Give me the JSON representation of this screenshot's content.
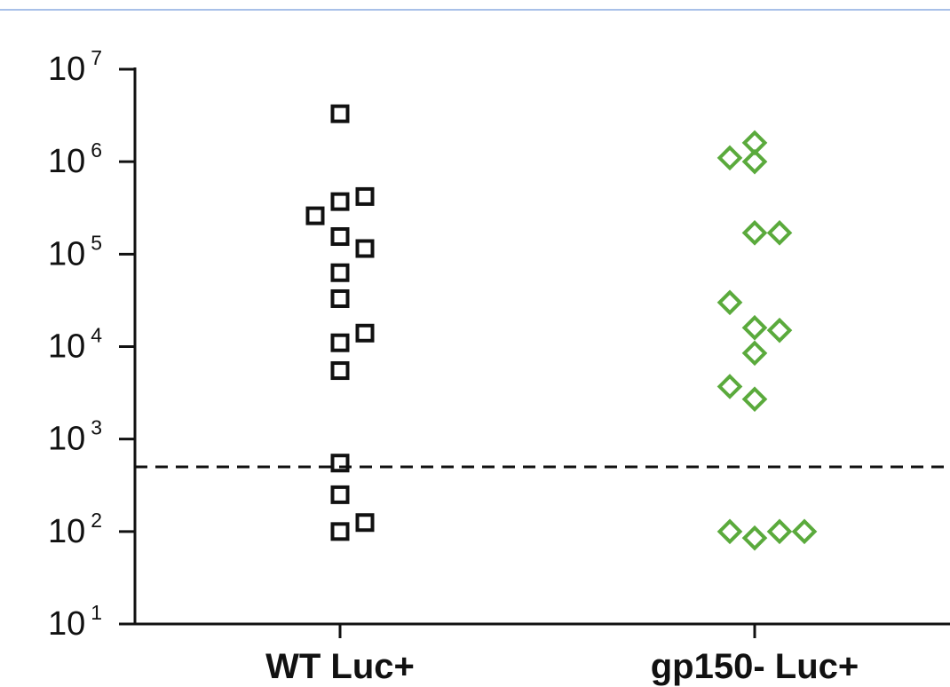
{
  "chart_data": {
    "type": "scatter",
    "title": "",
    "xlabel": "",
    "ylabel": "",
    "y_scale": "log",
    "ylim": [
      10,
      10000000
    ],
    "y_ticks": [
      {
        "value": 10,
        "base": "10",
        "exp": "1"
      },
      {
        "value": 100,
        "base": "10",
        "exp": "2"
      },
      {
        "value": 1000,
        "base": "10",
        "exp": "3"
      },
      {
        "value": 10000,
        "base": "10",
        "exp": "4"
      },
      {
        "value": 100000,
        "base": "10",
        "exp": "5"
      },
      {
        "value": 1000000,
        "base": "10",
        "exp": "6"
      },
      {
        "value": 10000000,
        "base": "10",
        "exp": "7"
      }
    ],
    "categories": [
      "WT Luc+",
      "gp150- Luc+"
    ],
    "threshold": 500,
    "grid": false,
    "legend": "none",
    "series": [
      {
        "category": "WT Luc+",
        "marker": "square",
        "color": "#111111",
        "values": [
          3300000,
          420000,
          370000,
          260000,
          155000,
          115000,
          63000,
          33000,
          14000,
          11000,
          5500,
          550,
          250,
          125,
          100
        ]
      },
      {
        "category": "gp150- Luc+",
        "marker": "diamond",
        "color": "#5aaa3c",
        "values": [
          1600000,
          1100000,
          1000000,
          170000,
          170000,
          30000,
          16000,
          15000,
          8500,
          3700,
          2700,
          100,
          85,
          100,
          100
        ]
      }
    ]
  },
  "colors": {
    "top_rule": "#a8c0e8",
    "axis": "#111111"
  }
}
